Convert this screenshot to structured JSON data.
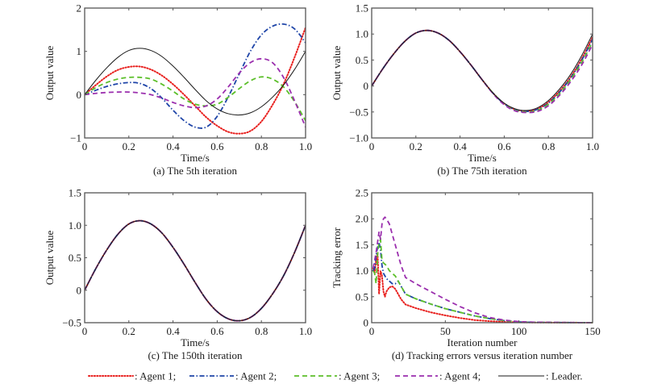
{
  "legend": [
    {
      "name": "Agent 1",
      "label": ": Agent 1;",
      "color": "#e8201e",
      "style": "dotted"
    },
    {
      "name": "Agent 2",
      "label": ": Agent 2;",
      "color": "#1f45a8",
      "style": "dashdot"
    },
    {
      "name": "Agent 3",
      "label": ": Agent 3;",
      "color": "#5cbf2a",
      "style": "dashed"
    },
    {
      "name": "Agent 4",
      "label": ": Agent 4;",
      "color": "#9b2fae",
      "style": "dashed"
    },
    {
      "name": "Leader",
      "label": ": Leader.",
      "color": "#1a1a1a",
      "style": "solid"
    }
  ],
  "chart_data": [
    {
      "id": "a",
      "type": "line",
      "caption": "(a) The 5th iteration",
      "xlabel": "Time/s",
      "ylabel": "Output value",
      "xlim": [
        0,
        1.0
      ],
      "ylim": [
        -1,
        2
      ],
      "xticks": [
        0,
        0.2,
        0.4,
        0.6,
        0.8,
        1.0
      ],
      "xtick_labels": [
        "0",
        "0.2",
        "0.4",
        "0.6",
        "0.8",
        "1.0"
      ],
      "yticks": [
        -1,
        0,
        1,
        2
      ],
      "ytick_labels": [
        "−1",
        "0",
        "1",
        "2"
      ],
      "x": [
        0,
        0.05,
        0.1,
        0.15,
        0.2,
        0.25,
        0.3,
        0.35,
        0.4,
        0.45,
        0.5,
        0.55,
        0.6,
        0.65,
        0.7,
        0.75,
        0.8,
        0.85,
        0.9,
        0.95,
        1.0
      ],
      "series": [
        {
          "name": "Leader",
          "values": [
            0,
            0.33,
            0.62,
            0.86,
            1.02,
            1.07,
            1.02,
            0.88,
            0.66,
            0.4,
            0.12,
            -0.14,
            -0.33,
            -0.44,
            -0.47,
            -0.42,
            -0.28,
            -0.06,
            0.22,
            0.58,
            1.0
          ]
        },
        {
          "name": "Agent 1",
          "values": [
            0,
            0.22,
            0.42,
            0.57,
            0.64,
            0.65,
            0.58,
            0.44,
            0.24,
            0.0,
            -0.26,
            -0.52,
            -0.72,
            -0.86,
            -0.9,
            -0.84,
            -0.62,
            -0.24,
            0.24,
            0.86,
            1.55
          ]
        },
        {
          "name": "Agent 2",
          "values": [
            0,
            0.1,
            0.19,
            0.25,
            0.28,
            0.26,
            0.14,
            -0.08,
            -0.36,
            -0.6,
            -0.75,
            -0.75,
            -0.5,
            -0.05,
            0.48,
            1.0,
            1.38,
            1.58,
            1.63,
            1.52,
            1.2
          ]
        },
        {
          "name": "Agent 3",
          "values": [
            0,
            0.16,
            0.28,
            0.36,
            0.4,
            0.4,
            0.36,
            0.24,
            0.08,
            -0.1,
            -0.22,
            -0.26,
            -0.22,
            -0.06,
            0.14,
            0.32,
            0.41,
            0.36,
            0.18,
            -0.16,
            -0.6
          ]
        },
        {
          "name": "Agent 4",
          "values": [
            0,
            0.03,
            0.05,
            0.06,
            0.06,
            0.04,
            0.0,
            -0.08,
            -0.18,
            -0.26,
            -0.3,
            -0.26,
            -0.1,
            0.18,
            0.5,
            0.74,
            0.83,
            0.74,
            0.4,
            -0.14,
            -0.75
          ]
        }
      ]
    },
    {
      "id": "b",
      "type": "line",
      "caption": "(b) The 75th iteration",
      "xlabel": "Time/s",
      "ylabel": "Output value",
      "xlim": [
        0,
        1.0
      ],
      "ylim": [
        -1.0,
        1.5
      ],
      "xticks": [
        0,
        0.2,
        0.4,
        0.6,
        0.8,
        1.0
      ],
      "xtick_labels": [
        "0",
        "0.2",
        "0.4",
        "0.6",
        "0.8",
        "1.0"
      ],
      "yticks": [
        -1.0,
        -0.5,
        0,
        0.5,
        1.0,
        1.5
      ],
      "ytick_labels": [
        "−1.0",
        "−0.5",
        "0",
        "0.5",
        "1.0",
        "1.5"
      ],
      "x": [
        0,
        0.05,
        0.1,
        0.15,
        0.2,
        0.25,
        0.3,
        0.35,
        0.4,
        0.45,
        0.5,
        0.55,
        0.6,
        0.65,
        0.7,
        0.75,
        0.8,
        0.85,
        0.9,
        0.95,
        1.0
      ],
      "series": [
        {
          "name": "Leader",
          "values": [
            0,
            0.33,
            0.62,
            0.86,
            1.02,
            1.07,
            1.02,
            0.88,
            0.66,
            0.4,
            0.12,
            -0.14,
            -0.33,
            -0.44,
            -0.47,
            -0.42,
            -0.28,
            -0.06,
            0.22,
            0.58,
            1.0
          ]
        },
        {
          "name": "Agent 1",
          "values": [
            0,
            0.33,
            0.62,
            0.86,
            1.02,
            1.07,
            1.02,
            0.88,
            0.66,
            0.4,
            0.12,
            -0.14,
            -0.34,
            -0.45,
            -0.48,
            -0.44,
            -0.31,
            -0.1,
            0.17,
            0.52,
            0.94
          ]
        },
        {
          "name": "Agent 2",
          "values": [
            0,
            0.33,
            0.62,
            0.86,
            1.02,
            1.07,
            1.02,
            0.88,
            0.66,
            0.4,
            0.12,
            -0.14,
            -0.34,
            -0.46,
            -0.49,
            -0.45,
            -0.33,
            -0.12,
            0.15,
            0.49,
            0.9
          ]
        },
        {
          "name": "Agent 3",
          "values": [
            0,
            0.33,
            0.62,
            0.86,
            1.02,
            1.07,
            1.02,
            0.88,
            0.66,
            0.4,
            0.12,
            -0.14,
            -0.35,
            -0.47,
            -0.5,
            -0.47,
            -0.35,
            -0.15,
            0.12,
            0.45,
            0.85
          ]
        },
        {
          "name": "Agent 4",
          "values": [
            0,
            0.33,
            0.62,
            0.86,
            1.02,
            1.07,
            1.02,
            0.88,
            0.66,
            0.4,
            0.12,
            -0.15,
            -0.36,
            -0.48,
            -0.51,
            -0.49,
            -0.38,
            -0.18,
            0.08,
            0.4,
            0.8
          ]
        }
      ]
    },
    {
      "id": "c",
      "type": "line",
      "caption": "(c) The 150th iteration",
      "xlabel": "Time/s",
      "ylabel": "Output value",
      "xlim": [
        0,
        1.0
      ],
      "ylim": [
        -0.5,
        1.5
      ],
      "xticks": [
        0,
        0.2,
        0.4,
        0.6,
        0.8,
        1.0
      ],
      "xtick_labels": [
        "0",
        "0.2",
        "0.4",
        "0.6",
        "0.8",
        "1.0"
      ],
      "yticks": [
        -0.5,
        0,
        0.5,
        1.0,
        1.5
      ],
      "ytick_labels": [
        "−0.5",
        "0",
        "0.5",
        "1.0",
        "1.5"
      ],
      "x": [
        0,
        0.05,
        0.1,
        0.15,
        0.2,
        0.25,
        0.3,
        0.35,
        0.4,
        0.45,
        0.5,
        0.55,
        0.6,
        0.65,
        0.7,
        0.75,
        0.8,
        0.85,
        0.9,
        0.95,
        1.0
      ],
      "series": [
        {
          "name": "Leader",
          "values": [
            0,
            0.33,
            0.62,
            0.86,
            1.02,
            1.07,
            1.02,
            0.88,
            0.66,
            0.4,
            0.12,
            -0.14,
            -0.33,
            -0.44,
            -0.47,
            -0.42,
            -0.28,
            -0.06,
            0.22,
            0.58,
            1.0
          ]
        },
        {
          "name": "Agent 1",
          "values": [
            0,
            0.33,
            0.62,
            0.86,
            1.02,
            1.07,
            1.02,
            0.88,
            0.66,
            0.4,
            0.12,
            -0.14,
            -0.33,
            -0.44,
            -0.47,
            -0.42,
            -0.28,
            -0.06,
            0.22,
            0.58,
            1.0
          ]
        },
        {
          "name": "Agent 2",
          "values": [
            0,
            0.33,
            0.62,
            0.86,
            1.02,
            1.07,
            1.02,
            0.88,
            0.66,
            0.4,
            0.12,
            -0.14,
            -0.33,
            -0.44,
            -0.47,
            -0.42,
            -0.28,
            -0.06,
            0.22,
            0.58,
            1.0
          ]
        },
        {
          "name": "Agent 3",
          "values": [
            0,
            0.33,
            0.62,
            0.86,
            1.02,
            1.07,
            1.02,
            0.88,
            0.66,
            0.4,
            0.12,
            -0.14,
            -0.33,
            -0.44,
            -0.47,
            -0.42,
            -0.28,
            -0.06,
            0.22,
            0.58,
            1.0
          ]
        },
        {
          "name": "Agent 4",
          "values": [
            0,
            0.33,
            0.62,
            0.86,
            1.02,
            1.07,
            1.02,
            0.88,
            0.66,
            0.4,
            0.12,
            -0.14,
            -0.33,
            -0.44,
            -0.47,
            -0.42,
            -0.28,
            -0.06,
            0.22,
            0.58,
            1.0
          ]
        }
      ]
    },
    {
      "id": "d",
      "type": "line",
      "caption": "(d) Tracking errors versus iteration number",
      "xlabel": "Iteration number",
      "ylabel": "Tracking error",
      "xlim": [
        0,
        150
      ],
      "ylim": [
        0,
        2.5
      ],
      "xticks": [
        0,
        50,
        100,
        150
      ],
      "xtick_labels": [
        "0",
        "50",
        "100",
        "150"
      ],
      "yticks": [
        0,
        0.5,
        1.0,
        1.5,
        2.0,
        2.5
      ],
      "ytick_labels": [
        "0",
        "0.5",
        "1.0",
        "1.5",
        "2.0",
        "2.5"
      ],
      "series": [
        {
          "name": "Agent 1",
          "x": [
            1,
            2,
            3,
            4,
            5,
            6,
            7,
            8,
            9,
            10,
            12,
            14,
            16,
            18,
            20,
            23,
            30,
            40,
            50,
            60,
            70,
            80,
            90,
            100,
            110,
            150
          ],
          "values": [
            1.05,
            0.95,
            1.2,
            1.35,
            0.55,
            1.0,
            0.9,
            0.6,
            0.5,
            0.6,
            0.68,
            0.7,
            0.65,
            0.55,
            0.45,
            0.35,
            0.28,
            0.2,
            0.14,
            0.09,
            0.05,
            0.03,
            0.015,
            0.008,
            0.004,
            0.0
          ]
        },
        {
          "name": "Agent 2",
          "x": [
            1,
            2,
            3,
            4,
            5,
            6,
            7,
            8,
            10,
            12,
            14,
            16,
            18,
            20,
            23,
            30,
            40,
            50,
            60,
            70,
            80,
            90,
            100,
            110,
            150
          ],
          "values": [
            1.0,
            1.05,
            1.3,
            1.45,
            1.55,
            1.4,
            1.1,
            0.95,
            0.85,
            0.8,
            0.75,
            0.75,
            0.8,
            0.7,
            0.55,
            0.46,
            0.36,
            0.27,
            0.2,
            0.13,
            0.08,
            0.04,
            0.015,
            0.006,
            0.0
          ]
        },
        {
          "name": "Agent 3",
          "x": [
            1,
            2,
            3,
            4,
            5,
            6,
            7,
            8,
            10,
            12,
            14,
            16,
            18,
            20,
            23,
            30,
            40,
            50,
            60,
            70,
            80,
            90,
            100,
            110,
            150
          ],
          "values": [
            1.0,
            0.95,
            0.75,
            1.3,
            1.55,
            1.6,
            1.2,
            1.15,
            1.1,
            1.0,
            0.95,
            0.9,
            0.8,
            0.7,
            0.55,
            0.46,
            0.36,
            0.27,
            0.2,
            0.13,
            0.08,
            0.04,
            0.015,
            0.006,
            0.0
          ]
        },
        {
          "name": "Agent 4",
          "x": [
            1,
            2,
            3,
            4,
            5,
            6,
            7,
            8,
            9,
            10,
            12,
            15,
            18,
            20,
            23,
            30,
            40,
            50,
            60,
            70,
            80,
            90,
            100,
            110,
            150
          ],
          "values": [
            1.05,
            1.2,
            1.35,
            1.55,
            1.75,
            1.6,
            1.9,
            2.0,
            2.03,
            2.0,
            1.9,
            1.6,
            1.3,
            1.1,
            0.87,
            0.75,
            0.6,
            0.45,
            0.31,
            0.19,
            0.1,
            0.05,
            0.02,
            0.01,
            0.0
          ]
        }
      ]
    }
  ]
}
